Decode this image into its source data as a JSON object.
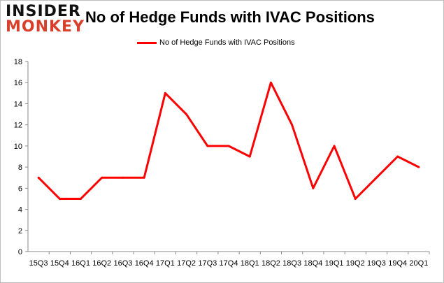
{
  "logo": {
    "line1": "INSIDER",
    "line2": "MONKEY"
  },
  "chart_data": {
    "type": "line",
    "title": "No of Hedge Funds with IVAC Positions",
    "xlabel": "",
    "ylabel": "",
    "categories": [
      "15Q3",
      "15Q4",
      "16Q1",
      "16Q2",
      "16Q3",
      "16Q4",
      "17Q1",
      "17Q2",
      "17Q3",
      "17Q4",
      "18Q1",
      "18Q2",
      "18Q3",
      "18Q4",
      "19Q1",
      "19Q2",
      "19Q3",
      "19Q4",
      "20Q1"
    ],
    "series": [
      {
        "name": "No of Hedge Funds with IVAC Positions",
        "color": "#ff0000",
        "values": [
          7,
          5,
          5,
          7,
          7,
          7,
          15,
          13,
          10,
          10,
          9,
          16,
          12,
          6,
          10,
          5,
          7,
          9,
          8
        ]
      }
    ],
    "ylim": [
      0,
      18
    ],
    "yticks": [
      0,
      2,
      4,
      6,
      8,
      10,
      12,
      14,
      16,
      18
    ],
    "grid": false,
    "legend": "top"
  }
}
